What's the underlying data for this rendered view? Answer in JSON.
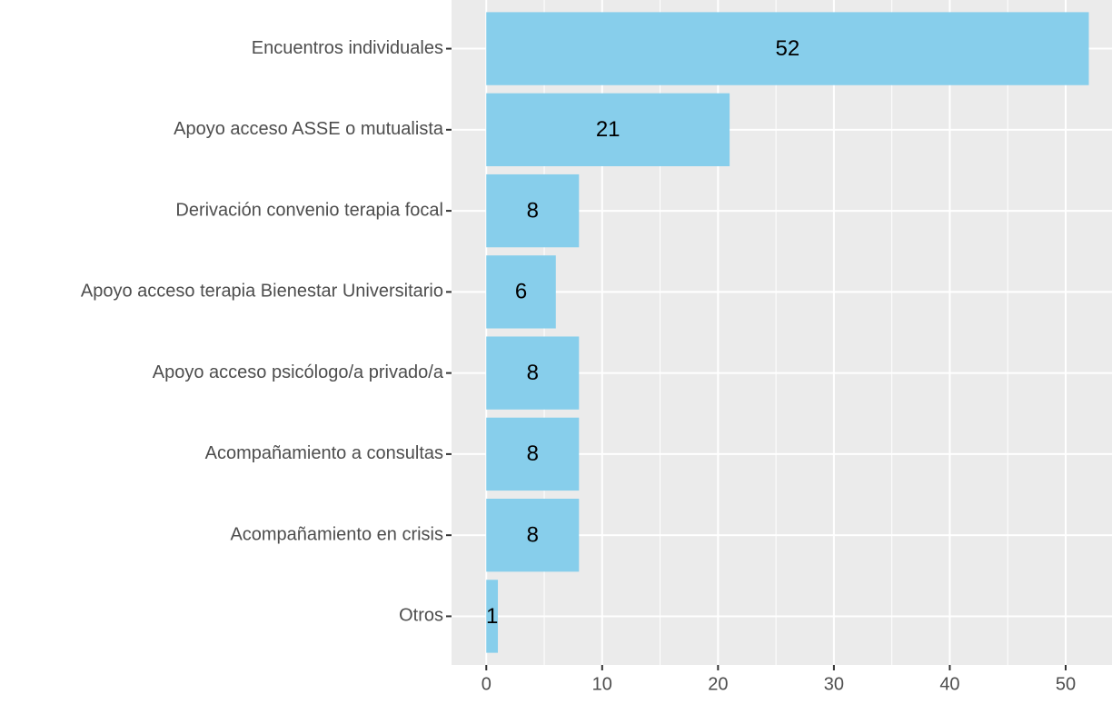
{
  "chart_data": {
    "type": "barh",
    "categories": [
      "Encuentros individuales",
      "Apoyo acceso ASSE o mutualista",
      "Derivación convenio terapia focal",
      "Apoyo acceso terapia Bienestar Universitario",
      "Apoyo acceso psicólogo/a privado/a",
      "Acompañamiento a consultas",
      "Acompañamiento en crisis",
      "Otros"
    ],
    "values": [
      52,
      21,
      8,
      6,
      8,
      8,
      8,
      1
    ],
    "color": "#87ceeb",
    "xlim": [
      -3,
      54
    ],
    "xticks": [
      0,
      10,
      20,
      30,
      40,
      50
    ],
    "minor_xticks": [
      5,
      15,
      25,
      35,
      45
    ],
    "grid": true,
    "panel_color": "#ebebeb"
  }
}
